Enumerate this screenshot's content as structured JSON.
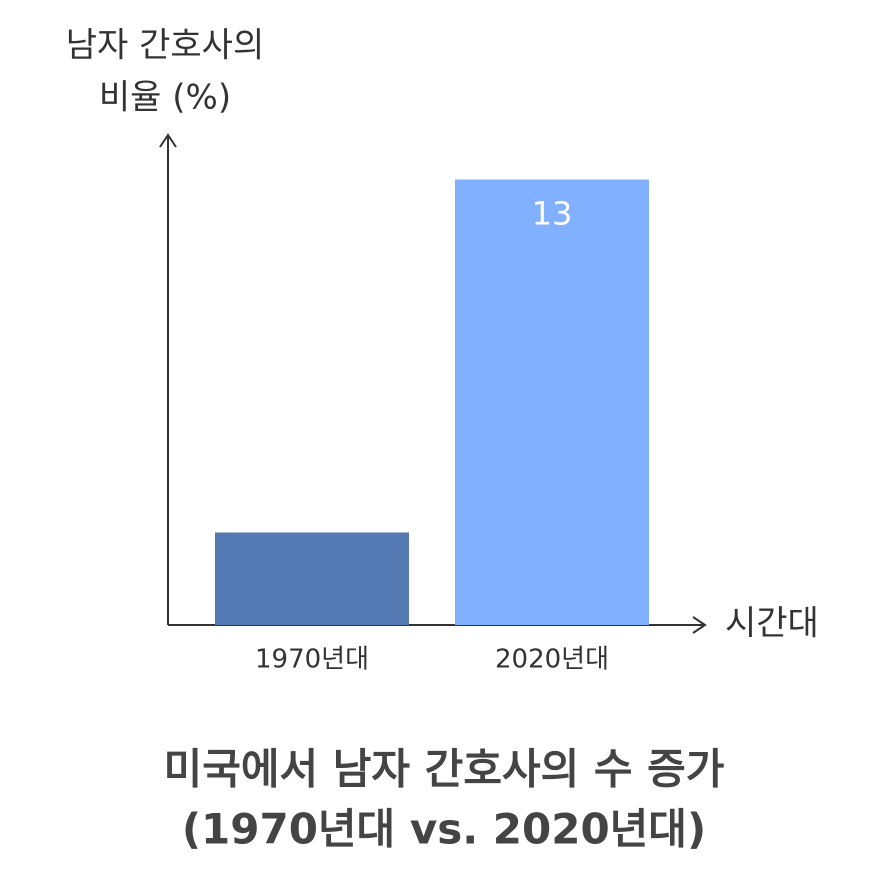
{
  "chart_data": {
    "type": "bar",
    "title": [
      "미국에서 남자 간호사의 수 증가",
      "(1970년대 vs. 2020년대)"
    ],
    "y_label": [
      "남자 간호사의",
      "비율 (%)"
    ],
    "x_label": "시간대",
    "categories": [
      "1970년대",
      "2020년대"
    ],
    "values": [
      2.7,
      13
    ],
    "value_labels": [
      null,
      "13"
    ],
    "colors": [
      "#5479b3",
      "#80b0ff"
    ],
    "ylim": [
      0,
      14.3
    ]
  }
}
